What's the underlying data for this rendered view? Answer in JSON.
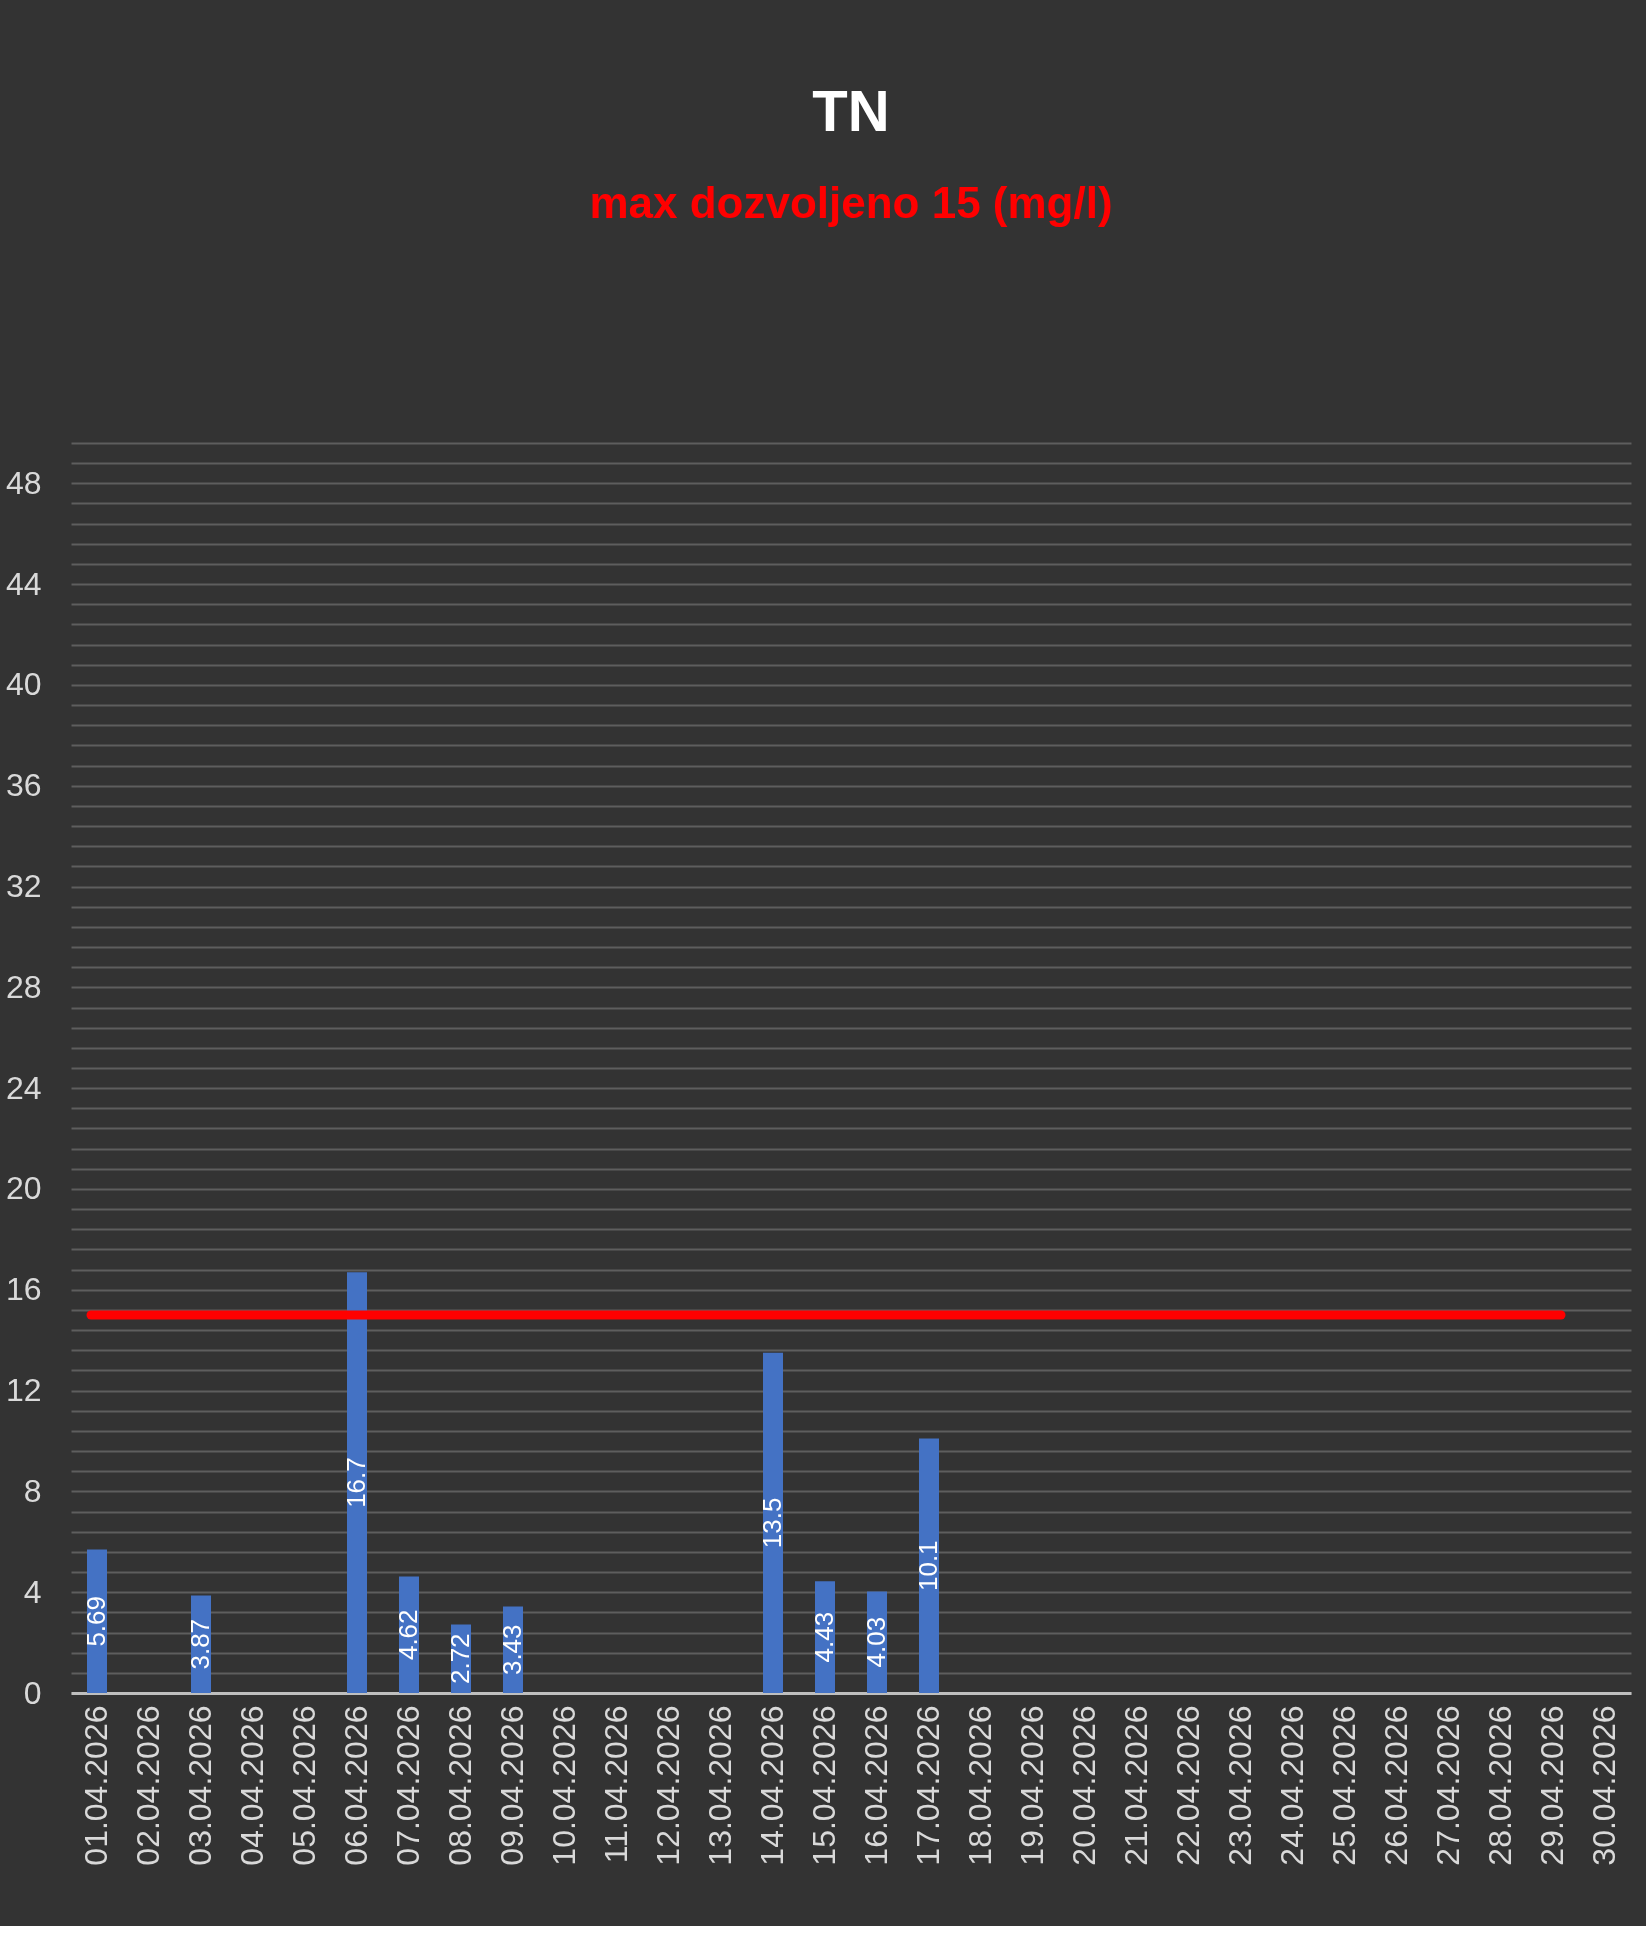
{
  "chart_data": {
    "type": "bar",
    "title": "TN",
    "subtitle": "max dozvoljeno 15 (mg/l)",
    "categories": [
      "01.04.2026",
      "02.04.2026",
      "03.04.2026",
      "04.04.2026",
      "05.04.2026",
      "06.04.2026",
      "07.04.2026",
      "08.04.2026",
      "09.04.2026",
      "10.04.2026",
      "11.04.2026",
      "12.04.2026",
      "13.04.2026",
      "14.04.2026",
      "15.04.2026",
      "16.04.2026",
      "17.04.2026",
      "18.04.2026",
      "19.04.2026",
      "20.04.2026",
      "21.04.2026",
      "22.04.2026",
      "23.04.2026",
      "24.04.2026",
      "25.04.2026",
      "26.04.2026",
      "27.04.2026",
      "28.04.2026",
      "29.04.2026",
      "30.04.2026"
    ],
    "values": [
      5.69,
      null,
      3.87,
      null,
      null,
      16.7,
      4.62,
      2.72,
      3.43,
      null,
      null,
      null,
      null,
      13.5,
      4.43,
      4.03,
      10.1,
      null,
      null,
      null,
      null,
      null,
      null,
      null,
      null,
      null,
      null,
      null,
      null,
      null
    ],
    "color": "#4472c4",
    "data_labels": true,
    "ylim": [
      0,
      49.6
    ],
    "yticks": [
      0,
      {
        "value": 0.8,
        "label": null
      },
      {
        "value": 1.6,
        "label": null
      },
      {
        "value": 2.4,
        "label": null
      },
      {
        "value": 3.2,
        "label": null
      },
      4,
      {
        "value": 4.8,
        "label": null
      },
      {
        "value": 5.6,
        "label": null
      },
      {
        "value": 6.4,
        "label": null
      },
      {
        "value": 7.2,
        "label": null
      },
      8,
      {
        "value": 8.8,
        "label": null
      },
      {
        "value": 9.6,
        "label": null
      },
      {
        "value": 10.4,
        "label": null
      },
      {
        "value": 11.2,
        "label": null
      },
      12,
      {
        "value": 12.8,
        "label": null
      },
      {
        "value": 13.6,
        "label": null
      },
      {
        "value": 14.4,
        "label": null
      },
      {
        "value": 15.2,
        "label": null
      },
      16,
      {
        "value": 16.8,
        "label": null
      },
      {
        "value": 17.6,
        "label": null
      },
      {
        "value": 18.4,
        "label": null
      },
      {
        "value": 19.2,
        "label": null
      },
      20,
      {
        "value": 20.8,
        "label": null
      },
      {
        "value": 21.6,
        "label": null
      },
      {
        "value": 22.4,
        "label": null
      },
      {
        "value": 23.2,
        "label": null
      },
      24,
      {
        "value": 24.8,
        "label": null
      },
      {
        "value": 25.6,
        "label": null
      },
      {
        "value": 26.4,
        "label": null
      },
      {
        "value": 27.2,
        "label": null
      },
      28,
      {
        "value": 28.8,
        "label": null
      },
      {
        "value": 29.6,
        "label": null
      },
      {
        "value": 30.4,
        "label": null
      },
      {
        "value": 31.2,
        "label": null
      },
      32,
      {
        "value": 32.8,
        "label": null
      },
      {
        "value": 33.6,
        "label": null
      },
      {
        "value": 34.4,
        "label": null
      },
      {
        "value": 35.2,
        "label": null
      },
      36,
      {
        "value": 36.8,
        "label": null
      },
      {
        "value": 37.6,
        "label": null
      },
      {
        "value": 38.4,
        "label": null
      },
      {
        "value": 39.2,
        "label": null
      },
      40,
      {
        "value": 40.8,
        "label": null
      },
      {
        "value": 41.6,
        "label": null
      },
      {
        "value": 42.4,
        "label": null
      },
      {
        "value": 43.2,
        "label": null
      },
      44,
      {
        "value": 44.8,
        "label": null
      },
      {
        "value": 45.6,
        "label": null
      },
      {
        "value": 46.4,
        "label": null
      },
      {
        "value": 47.2,
        "label": null
      },
      48,
      {
        "value": 48.8,
        "label": null
      },
      {
        "value": 49.6,
        "label": null
      }
    ],
    "grid": "y",
    "ref_lines": [
      {
        "axis": "y",
        "value": 15,
        "color": "#ff0000"
      }
    ]
  }
}
